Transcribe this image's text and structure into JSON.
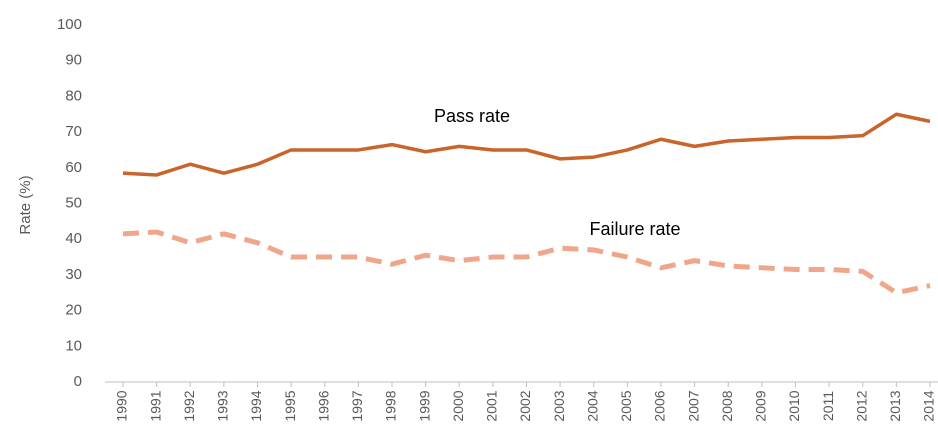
{
  "chart_data": {
    "type": "line",
    "y_label": "Rate (%)",
    "annotations": [
      "Pass rate",
      "Failure rate"
    ],
    "categories": [
      "1990",
      "1991",
      "1992",
      "1993",
      "1994",
      "1995",
      "1996",
      "1997",
      "1998",
      "1999",
      "2000",
      "2001",
      "2002",
      "2003",
      "2004",
      "2005",
      "2006",
      "2007",
      "2008",
      "2009",
      "2010",
      "2011",
      "2012",
      "2013",
      "2014"
    ],
    "series": [
      {
        "name": "Pass rate",
        "color": "#c9642b",
        "dashed": false,
        "values": [
          58.5,
          58,
          61,
          58.5,
          61,
          65,
          65,
          65,
          66.5,
          64.5,
          66,
          65,
          65,
          62.5,
          63,
          65,
          68,
          66,
          67.5,
          68,
          68.5,
          68.5,
          69,
          75,
          73
        ]
      },
      {
        "name": "Failure rate",
        "color": "#f0a68b",
        "dashed": true,
        "values": [
          41.5,
          42,
          39,
          41.5,
          39,
          35,
          35,
          35,
          33,
          35.5,
          34,
          35,
          35,
          37.5,
          37,
          35,
          32,
          34,
          32.5,
          32,
          31.5,
          31.5,
          31,
          25,
          27
        ]
      }
    ],
    "ylim": [
      0,
      100
    ],
    "yticks": [
      0,
      10,
      20,
      30,
      40,
      50,
      60,
      70,
      80,
      90,
      100
    ],
    "grid": false
  }
}
